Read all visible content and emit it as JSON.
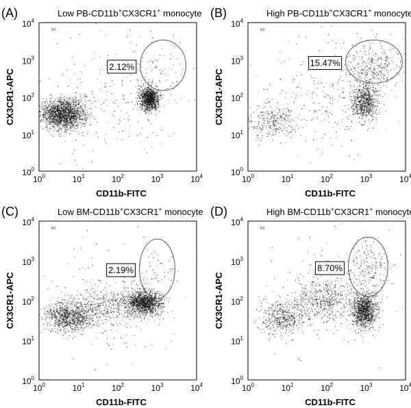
{
  "figure": {
    "x_axis_label": "CD11b-FITC",
    "y_axis_label": "CX3CR1-APC",
    "gate_tag": "R2"
  },
  "chart_data": [
    {
      "type": "scatter",
      "panel_label": "(A)",
      "title_prefix": "Low PB-CD11b",
      "title_mid": "CX3CR1",
      "title_suffix": " monocyte",
      "sup": "+",
      "gate_tag": "R2",
      "gate_percent": "2.12%",
      "xlabel": "CD11b-FITC",
      "ylabel": "CX3CR1-APC",
      "x_scale": "log",
      "y_scale": "log",
      "xlim": [
        1,
        10000
      ],
      "ylim": [
        1,
        10000
      ],
      "x_ticks": [
        {
          "base": "10",
          "exp": "0"
        },
        {
          "base": "10",
          "exp": "1"
        },
        {
          "base": "10",
          "exp": "2"
        },
        {
          "base": "10",
          "exp": "3"
        },
        {
          "base": "10",
          "exp": "4"
        }
      ],
      "y_ticks": [
        {
          "base": "10",
          "exp": "0"
        },
        {
          "base": "10",
          "exp": "1"
        },
        {
          "base": "10",
          "exp": "2"
        },
        {
          "base": "10",
          "exp": "3"
        },
        {
          "base": "10",
          "exp": "4"
        }
      ],
      "gate": {
        "center_decades": [
          3.15,
          2.85
        ],
        "radius_decades": [
          0.58,
          0.68
        ]
      },
      "clusters": [
        {
          "label": "CD11b-low population",
          "center_decades": [
            0.6,
            1.55
          ],
          "spread_decades": [
            0.28,
            0.2
          ],
          "events": 1700
        },
        {
          "label": "CD11b-high population",
          "center_decades": [
            2.8,
            1.95
          ],
          "spread_decades": [
            0.12,
            0.15
          ],
          "events": 1050
        },
        {
          "label": "sparse background",
          "center_decades": [
            1.8,
            1.9
          ],
          "spread_decades": [
            0.9,
            0.9
          ],
          "events": 200
        },
        {
          "label": "gate events",
          "center_decades": [
            3.1,
            2.75
          ],
          "spread_decades": [
            0.35,
            0.4
          ],
          "events": 70
        }
      ]
    },
    {
      "type": "scatter",
      "panel_label": "(B)",
      "title_prefix": "High PB-CD11b",
      "title_mid": "CX3CR1",
      "title_suffix": " monocyte",
      "sup": "+",
      "gate_tag": "R2",
      "gate_percent": "15.47%",
      "xlabel": "CD11b-FITC",
      "ylabel": "CX3CR1-APC",
      "x_scale": "log",
      "y_scale": "log",
      "xlim": [
        1,
        10000
      ],
      "ylim": [
        1,
        10000
      ],
      "x_ticks": [
        {
          "base": "10",
          "exp": "0"
        },
        {
          "base": "10",
          "exp": "1"
        },
        {
          "base": "10",
          "exp": "2"
        },
        {
          "base": "10",
          "exp": "3"
        },
        {
          "base": "10",
          "exp": "4"
        }
      ],
      "y_ticks": [
        {
          "base": "10",
          "exp": "0"
        },
        {
          "base": "10",
          "exp": "1"
        },
        {
          "base": "10",
          "exp": "2"
        },
        {
          "base": "10",
          "exp": "3"
        },
        {
          "base": "10",
          "exp": "4"
        }
      ],
      "gate": {
        "center_decades": [
          3.2,
          2.95
        ],
        "radius_decades": [
          0.72,
          0.58
        ]
      },
      "clusters": [
        {
          "label": "CD11b-low population",
          "center_decades": [
            0.6,
            1.35
          ],
          "spread_decades": [
            0.32,
            0.25
          ],
          "events": 260
        },
        {
          "label": "CD11b-high population",
          "center_decades": [
            2.95,
            1.85
          ],
          "spread_decades": [
            0.16,
            0.25
          ],
          "events": 700
        },
        {
          "label": "sparse background",
          "center_decades": [
            1.8,
            2.0
          ],
          "spread_decades": [
            0.9,
            0.85
          ],
          "events": 260
        },
        {
          "label": "gate events",
          "center_decades": [
            3.15,
            2.85
          ],
          "spread_decades": [
            0.35,
            0.3
          ],
          "events": 320
        }
      ]
    },
    {
      "type": "scatter",
      "panel_label": "(C)",
      "title_prefix": "Low BM-CD11b",
      "title_mid": "CX3CR1",
      "title_suffix": " monocyte",
      "sup": "+",
      "gate_tag": "R2",
      "gate_percent": "2.19%",
      "xlabel": "CD11b-FITC",
      "ylabel": "CX3CR1-APC",
      "x_scale": "log",
      "y_scale": "log",
      "xlim": [
        1,
        10000
      ],
      "ylim": [
        1,
        10000
      ],
      "x_ticks": [
        {
          "base": "10",
          "exp": "0"
        },
        {
          "base": "10",
          "exp": "1"
        },
        {
          "base": "10",
          "exp": "2"
        },
        {
          "base": "10",
          "exp": "3"
        },
        {
          "base": "10",
          "exp": "4"
        }
      ],
      "y_ticks": [
        {
          "base": "10",
          "exp": "0"
        },
        {
          "base": "10",
          "exp": "1"
        },
        {
          "base": "10",
          "exp": "2"
        },
        {
          "base": "10",
          "exp": "3"
        },
        {
          "base": "10",
          "exp": "4"
        }
      ],
      "gate": {
        "center_decades": [
          3.0,
          2.8
        ],
        "radius_decades": [
          0.45,
          0.75
        ]
      },
      "clusters": [
        {
          "label": "CD11b-low population",
          "center_decades": [
            0.75,
            1.6
          ],
          "spread_decades": [
            0.3,
            0.18
          ],
          "events": 900
        },
        {
          "label": "CD11b-high population",
          "center_decades": [
            2.65,
            1.95
          ],
          "spread_decades": [
            0.22,
            0.15
          ],
          "events": 1300
        },
        {
          "label": "bridge population",
          "center_decades": [
            1.7,
            1.85
          ],
          "spread_decades": [
            0.45,
            0.25
          ],
          "events": 420
        },
        {
          "label": "sparse background",
          "center_decades": [
            1.8,
            1.9
          ],
          "spread_decades": [
            0.9,
            0.8
          ],
          "events": 180
        },
        {
          "label": "gate events",
          "center_decades": [
            3.0,
            2.7
          ],
          "spread_decades": [
            0.3,
            0.4
          ],
          "events": 60
        }
      ]
    },
    {
      "type": "scatter",
      "panel_label": "(D)",
      "title_prefix": "High BM-CD11b",
      "title_mid": "CX3CR1",
      "title_suffix": " monocyte",
      "sup": "+",
      "gate_tag": "R2",
      "gate_percent": "8.70%",
      "xlabel": "CD11b-FITC",
      "ylabel": "CX3CR1-APC",
      "x_scale": "log",
      "y_scale": "log",
      "xlim": [
        1,
        10000
      ],
      "ylim": [
        1,
        10000
      ],
      "x_ticks": [
        {
          "base": "10",
          "exp": "0"
        },
        {
          "base": "10",
          "exp": "1"
        },
        {
          "base": "10",
          "exp": "2"
        },
        {
          "base": "10",
          "exp": "3"
        },
        {
          "base": "10",
          "exp": "4"
        }
      ],
      "y_ticks": [
        {
          "base": "10",
          "exp": "0"
        },
        {
          "base": "10",
          "exp": "1"
        },
        {
          "base": "10",
          "exp": "2"
        },
        {
          "base": "10",
          "exp": "3"
        },
        {
          "base": "10",
          "exp": "4"
        }
      ],
      "gate": {
        "center_decades": [
          3.05,
          2.85
        ],
        "radius_decades": [
          0.5,
          0.75
        ]
      },
      "clusters": [
        {
          "label": "CD11b-low population",
          "center_decades": [
            0.9,
            1.6
          ],
          "spread_decades": [
            0.28,
            0.2
          ],
          "events": 450
        },
        {
          "label": "CD11b-high population",
          "center_decades": [
            2.95,
            1.75
          ],
          "spread_decades": [
            0.15,
            0.2
          ],
          "events": 1100
        },
        {
          "label": "bridge population",
          "center_decades": [
            1.9,
            2.05
          ],
          "spread_decades": [
            0.4,
            0.25
          ],
          "events": 450
        },
        {
          "label": "sparse background",
          "center_decades": [
            1.9,
            2.0
          ],
          "spread_decades": [
            0.85,
            0.8
          ],
          "events": 180
        },
        {
          "label": "gate events",
          "center_decades": [
            3.05,
            2.75
          ],
          "spread_decades": [
            0.3,
            0.4
          ],
          "events": 200
        }
      ]
    }
  ]
}
